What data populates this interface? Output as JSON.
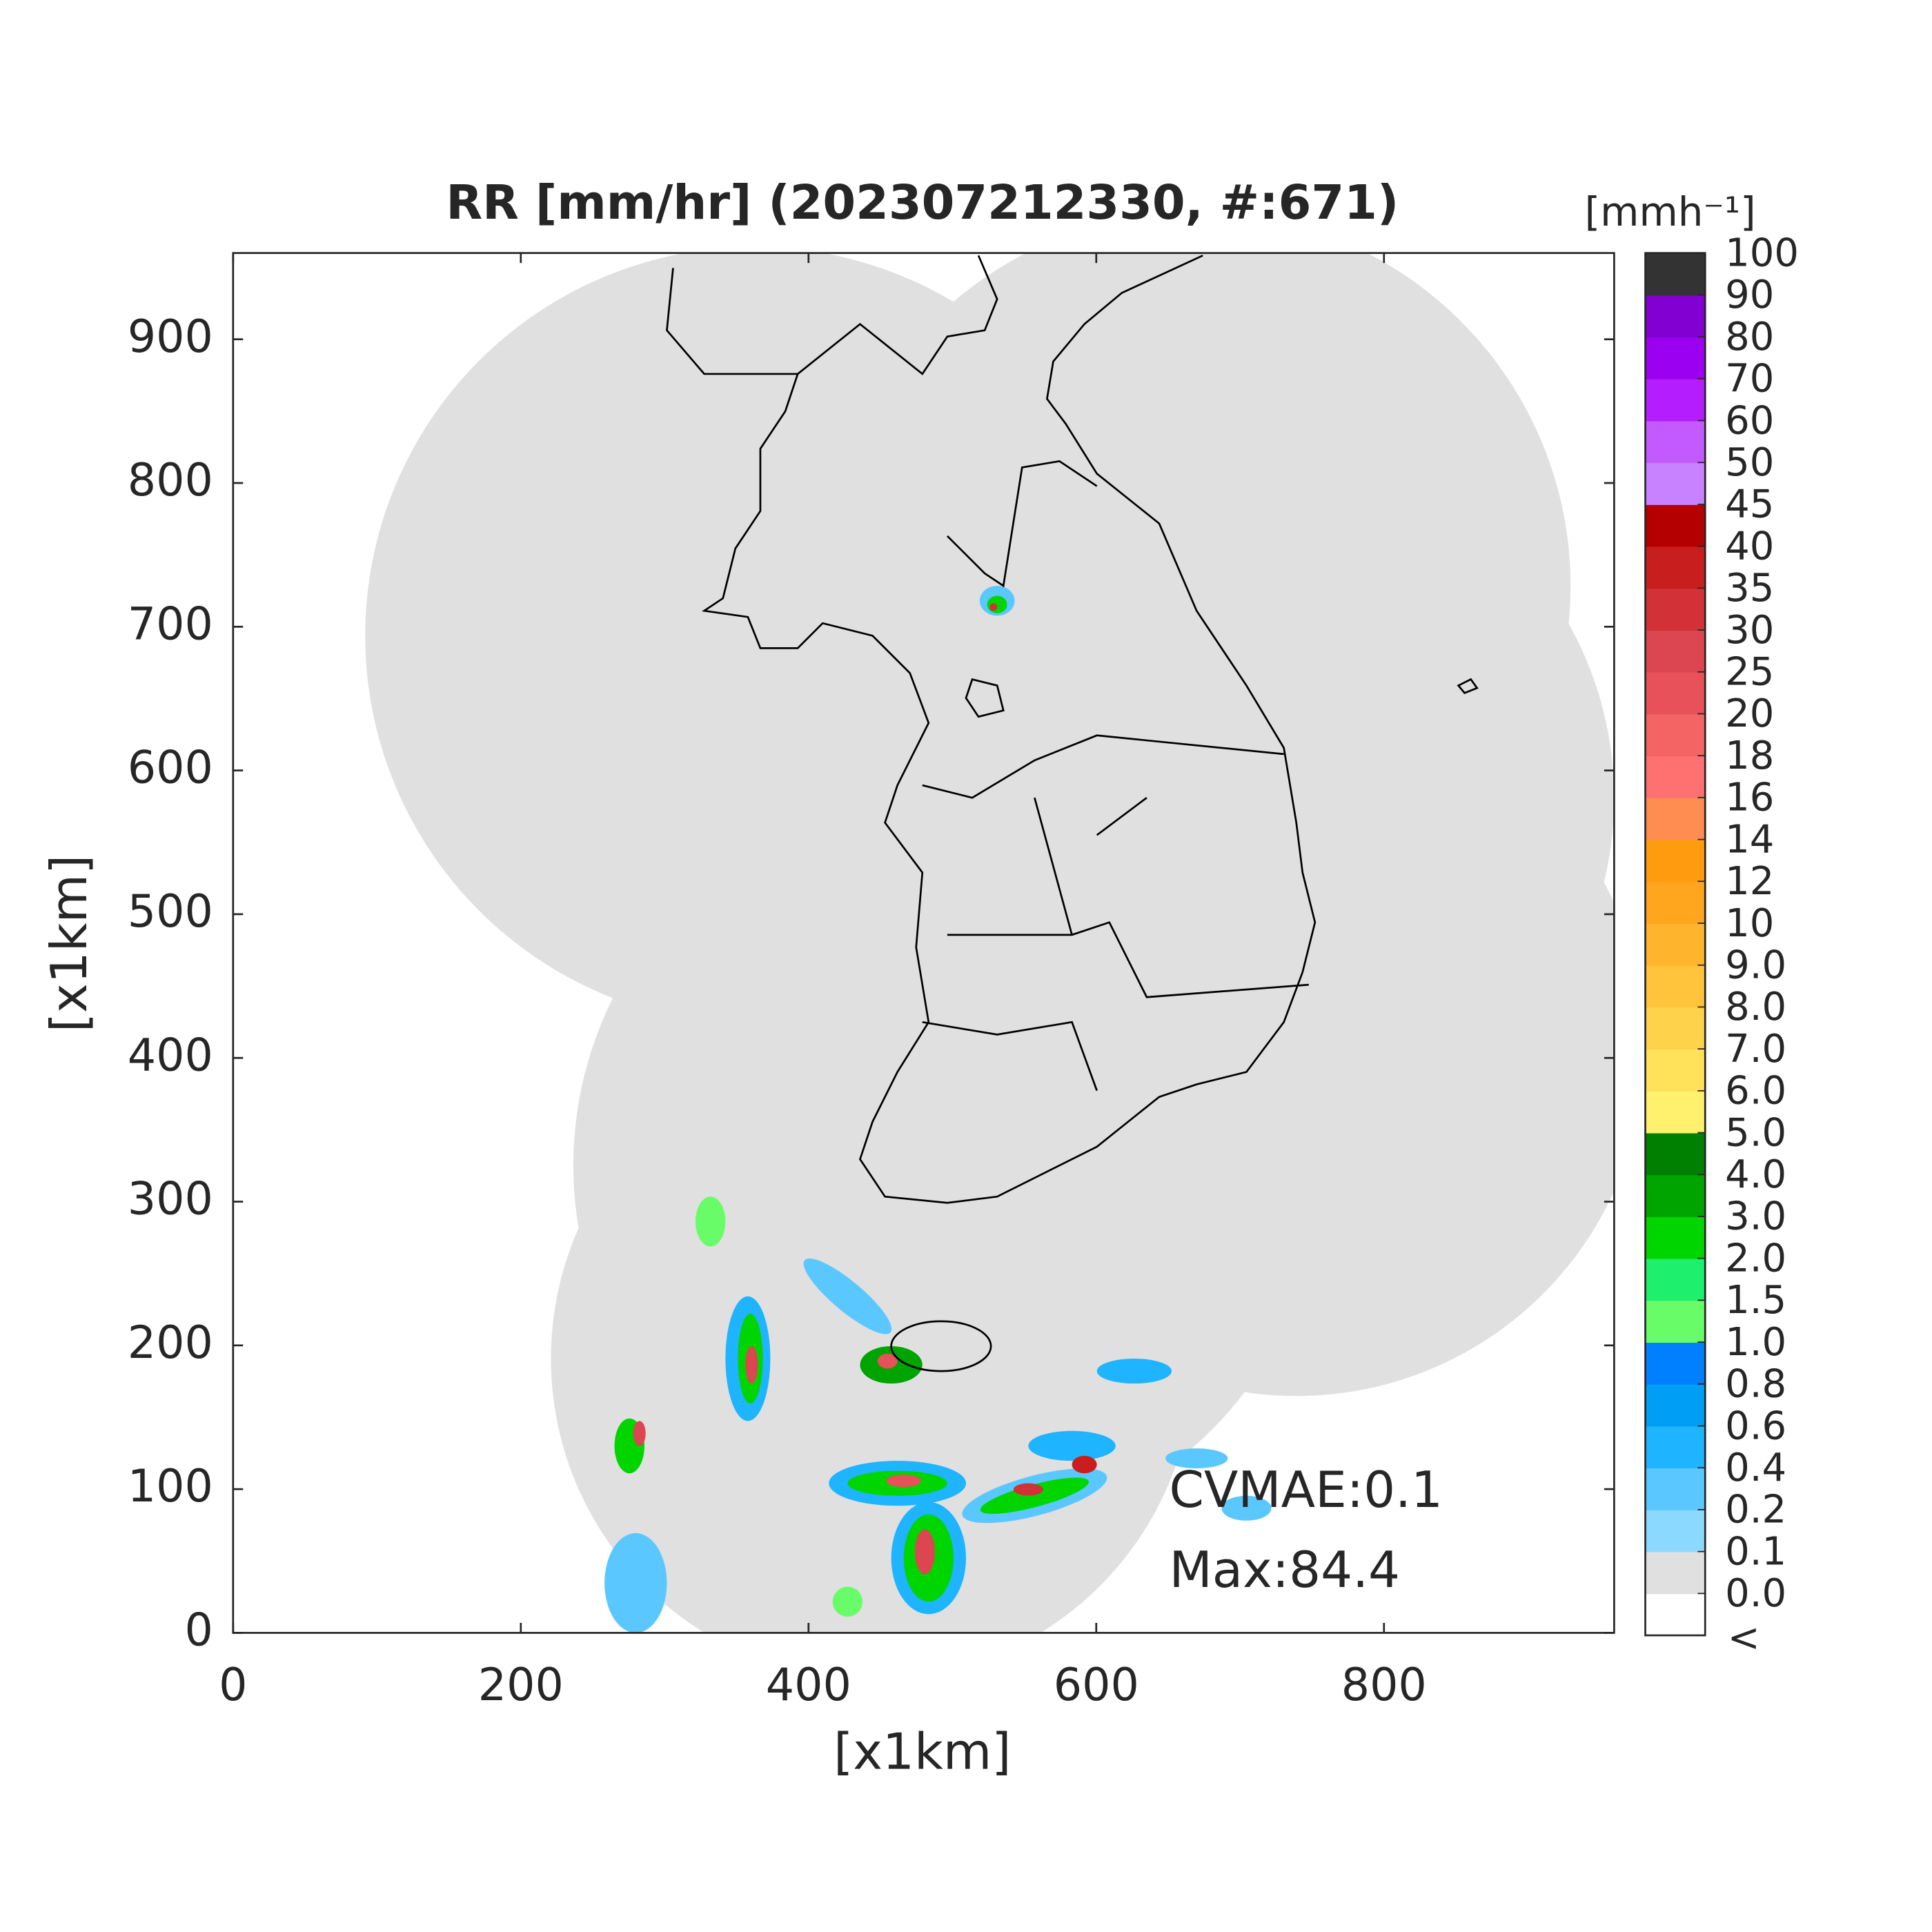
{
  "chart_data": {
    "type": "radar-map",
    "title": "RR [mm/hr] (202307212330, #:671)",
    "x_label": "[x1km]",
    "y_label": "[x1km]",
    "xlim": [
      0,
      960
    ],
    "ylim": [
      0,
      960
    ],
    "xticks": [
      0,
      200,
      400,
      600,
      800
    ],
    "yticks": [
      0,
      100,
      200,
      300,
      400,
      500,
      600,
      700,
      800,
      900
    ],
    "annotations": [
      "CVMAE:0.1",
      "Max:84.4"
    ],
    "colorbar": {
      "label": "[mmh⁻¹]",
      "below_label": "<",
      "ticks": [
        {
          "value": 0,
          "label": "0.0"
        },
        0.1,
        0.2,
        0.4,
        0.6,
        0.8,
        {
          "value": 1,
          "label": "1.0"
        },
        1.5,
        {
          "value": 2,
          "label": "2.0"
        },
        {
          "value": 3,
          "label": "3.0"
        },
        {
          "value": 4,
          "label": "4.0"
        },
        {
          "value": 5,
          "label": "5.0"
        },
        {
          "value": 6,
          "label": "6.0"
        },
        {
          "value": 7,
          "label": "7.0"
        },
        {
          "value": 8,
          "label": "8.0"
        },
        {
          "value": 9,
          "label": "9.0"
        },
        10,
        12,
        14,
        16,
        18,
        20,
        25,
        30,
        35,
        40,
        45,
        50,
        60,
        70,
        80,
        90,
        100
      ],
      "colors": [
        "#ffffff",
        "#e0e0e0",
        "#8cd9ff",
        "#5ac8ff",
        "#1eb4ff",
        "#009ff5",
        "#0080ff",
        "#69fc69",
        "#1ef06e",
        "#00d500",
        "#00a400",
        "#008000",
        "#fff06e",
        "#ffe15a",
        "#ffd24b",
        "#ffc33c",
        "#ffb42d",
        "#ffa51e",
        "#ff9b0f",
        "#ff8c50",
        "#ff7070",
        "#f56464",
        "#e8505a",
        "#dc4650",
        "#d23237",
        "#c81e1e",
        "#b40000",
        "#c882ff",
        "#c35aff",
        "#b41eff",
        "#9b00f0",
        "#8200d2",
        "#333333"
      ]
    }
  }
}
